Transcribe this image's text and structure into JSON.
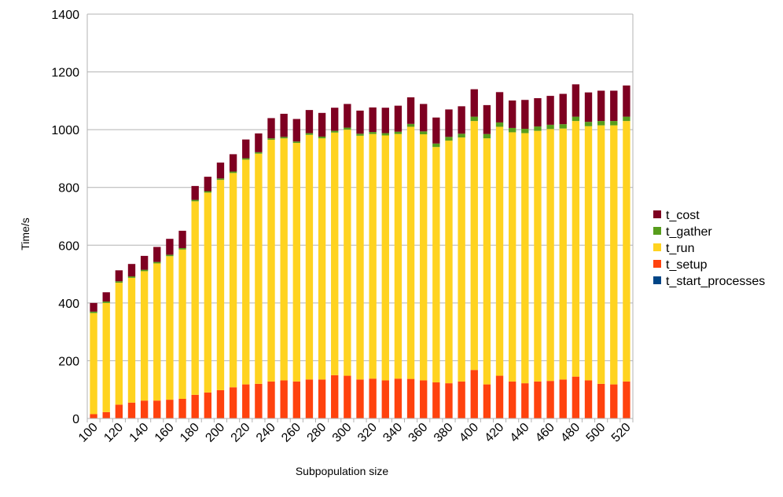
{
  "chart_data": {
    "type": "bar",
    "stacked": true,
    "title": "",
    "xlabel": "Subpopulation size",
    "ylabel": "Time/s",
    "ylim": [
      0,
      1400
    ],
    "yticks": [
      0,
      200,
      400,
      600,
      800,
      1000,
      1200,
      1400
    ],
    "grid": true,
    "legend_position": "right",
    "categories": [
      100,
      110,
      120,
      130,
      140,
      150,
      160,
      170,
      180,
      190,
      200,
      210,
      220,
      230,
      240,
      250,
      260,
      270,
      280,
      290,
      300,
      310,
      320,
      330,
      340,
      350,
      360,
      370,
      380,
      390,
      400,
      410,
      420,
      430,
      440,
      450,
      460,
      470,
      480,
      490,
      500,
      510,
      520
    ],
    "xtick_labels": [
      "100",
      "120",
      "140",
      "160",
      "180",
      "200",
      "220",
      "240",
      "260",
      "280",
      "300",
      "320",
      "340",
      "360",
      "380",
      "400",
      "420",
      "440",
      "460",
      "480",
      "500",
      "520"
    ],
    "series": [
      {
        "name": "t_start_processes",
        "color": "#004586",
        "values": [
          0,
          0,
          0,
          0,
          0,
          0,
          0,
          0,
          0,
          0,
          0,
          0,
          0,
          0,
          0,
          0,
          0,
          0,
          0,
          0,
          0,
          0,
          0,
          0,
          0,
          0,
          0,
          0,
          0,
          0,
          0,
          0,
          0,
          0,
          0,
          0,
          0,
          0,
          0,
          0,
          0,
          0,
          0
        ]
      },
      {
        "name": "t_setup",
        "color": "#ff420e",
        "values": [
          15,
          22,
          48,
          55,
          62,
          62,
          65,
          68,
          82,
          90,
          98,
          108,
          118,
          120,
          128,
          132,
          128,
          135,
          135,
          150,
          148,
          135,
          138,
          132,
          138,
          137,
          132,
          125,
          122,
          128,
          168,
          118,
          148,
          128,
          122,
          128,
          130,
          135,
          145,
          132,
          120,
          118,
          128
        ]
      },
      {
        "name": "t_run",
        "color": "#ffd320",
        "values": [
          350,
          378,
          422,
          432,
          448,
          475,
          497,
          517,
          670,
          692,
          728,
          742,
          778,
          797,
          837,
          838,
          826,
          847,
          835,
          840,
          852,
          844,
          847,
          848,
          847,
          873,
          852,
          815,
          840,
          845,
          862,
          852,
          862,
          863,
          866,
          868,
          872,
          869,
          885,
          880,
          895,
          897,
          902
        ]
      },
      {
        "name": "t_gather",
        "color": "#579d1c",
        "values": [
          5,
          5,
          5,
          5,
          5,
          5,
          5,
          5,
          5,
          5,
          5,
          5,
          5,
          5,
          5,
          5,
          5,
          6,
          6,
          6,
          7,
          7,
          7,
          8,
          8,
          10,
          10,
          12,
          13,
          13,
          15,
          15,
          15,
          15,
          15,
          15,
          15,
          15,
          15,
          15,
          15,
          15,
          15
        ]
      },
      {
        "name": "t_cost",
        "color": "#7e0021",
        "values": [
          30,
          32,
          38,
          43,
          48,
          52,
          55,
          60,
          48,
          50,
          55,
          60,
          65,
          65,
          70,
          80,
          78,
          80,
          82,
          80,
          82,
          80,
          85,
          88,
          90,
          92,
          95,
          90,
          95,
          95,
          95,
          100,
          105,
          95,
          100,
          98,
          100,
          105,
          112,
          102,
          105,
          105,
          108
        ]
      }
    ]
  }
}
